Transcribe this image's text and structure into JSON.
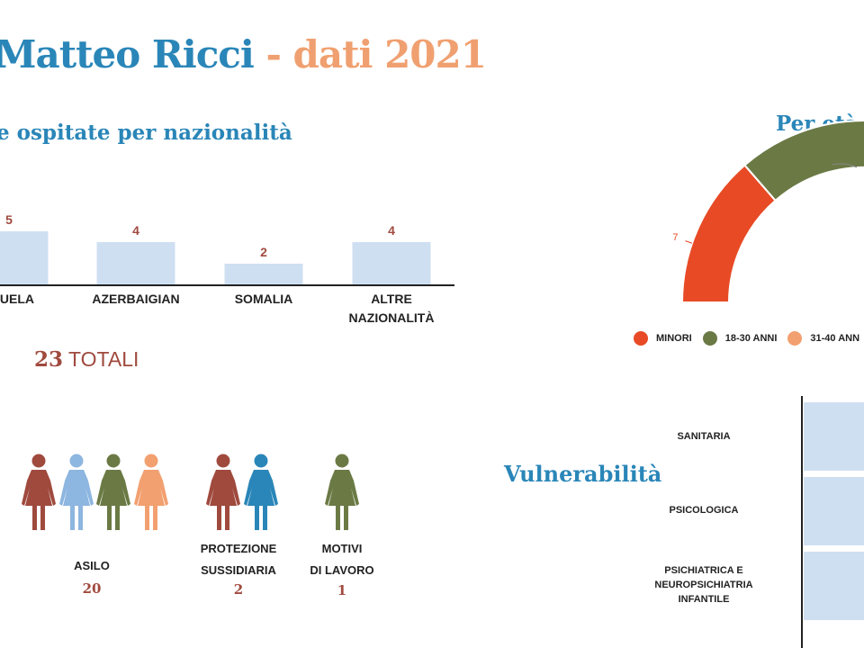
{
  "header": {
    "title_part1": "Matteo Ricci",
    "title_sep": " - ",
    "title_part2": "dati 2021"
  },
  "colors": {
    "blue": "#2a86b8",
    "peach": "#f0a070",
    "brick": "#a04a3e",
    "bar_fill": "#cfdff2",
    "red": "#e84a25",
    "olive": "#6b7a45",
    "orange": "#f2a070",
    "teal": "#2a86b8",
    "lightblue": "#8db6e0"
  },
  "chart_data": [
    {
      "type": "bar",
      "title": "e ospitate per nazionalità",
      "categories": [
        "EZUELA",
        "AZERBAIGIAN",
        "SOMALIA",
        "ALTRE NAZIONALITÀ"
      ],
      "values": [
        5,
        4,
        2,
        4
      ],
      "ylim": [
        0,
        5
      ]
    },
    {
      "type": "pie",
      "title": "Per età",
      "legend": [
        "MINORI",
        "18-30 ANNI",
        "31-40 ANN"
      ],
      "visible_labels": [
        "7"
      ],
      "slices": [
        {
          "label": "MINORI",
          "value": 7
        },
        {
          "label": "18-30 ANNI"
        },
        {
          "label": "31-40 ANN"
        }
      ]
    },
    {
      "type": "bar",
      "title": "Vulnerabilità",
      "orientation": "horizontal",
      "categories": [
        "SANITARIA",
        "PSICOLOGICA",
        "PSICHIATRICA E\nNEUROPSICHIATRIA\nINFANTILE"
      ]
    }
  ],
  "totals": {
    "number": "23",
    "label": " TOTALI"
  },
  "permits": [
    {
      "label": "ASILO",
      "value": "20",
      "icons": [
        "brick",
        "lightblue",
        "olive",
        "orange"
      ]
    },
    {
      "label": "PROTEZIONE\nSUSSIDIARIA",
      "value": "2",
      "icons": [
        "brick",
        "teal"
      ]
    },
    {
      "label": "MOTIVI\nDI LAVORO",
      "value": "1",
      "icons": [
        "olive"
      ]
    }
  ]
}
